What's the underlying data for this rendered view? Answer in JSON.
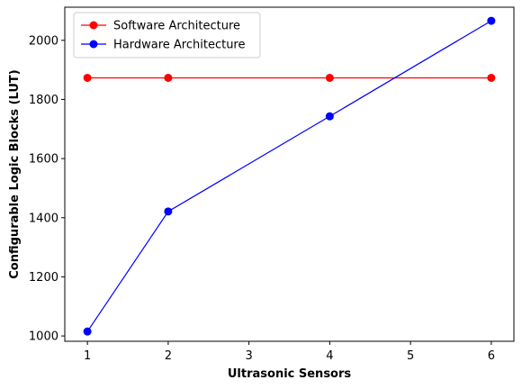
{
  "chart_data": {
    "type": "line",
    "title": "",
    "xlabel": "Ultrasonic Sensors",
    "ylabel": "Configurable Logic Blocks (LUT)",
    "xlim": [
      0.72,
      6.28
    ],
    "ylim": [
      982,
      2112
    ],
    "xticks": [
      1,
      2,
      3,
      4,
      5,
      6
    ],
    "yticks": [
      1000,
      1200,
      1400,
      1600,
      1800,
      2000
    ],
    "grid": false,
    "legend_position": "top-left",
    "series": [
      {
        "name": "Software Architecture",
        "color": "#ff0000",
        "marker": "circle",
        "x": [
          1,
          2,
          4,
          6
        ],
        "y": [
          1873,
          1873,
          1873,
          1873
        ]
      },
      {
        "name": "Hardware Architecture",
        "color": "#0000ff",
        "marker": "circle",
        "x": [
          1,
          2,
          4,
          6
        ],
        "y": [
          1015,
          1421,
          1743,
          2066
        ]
      }
    ]
  }
}
